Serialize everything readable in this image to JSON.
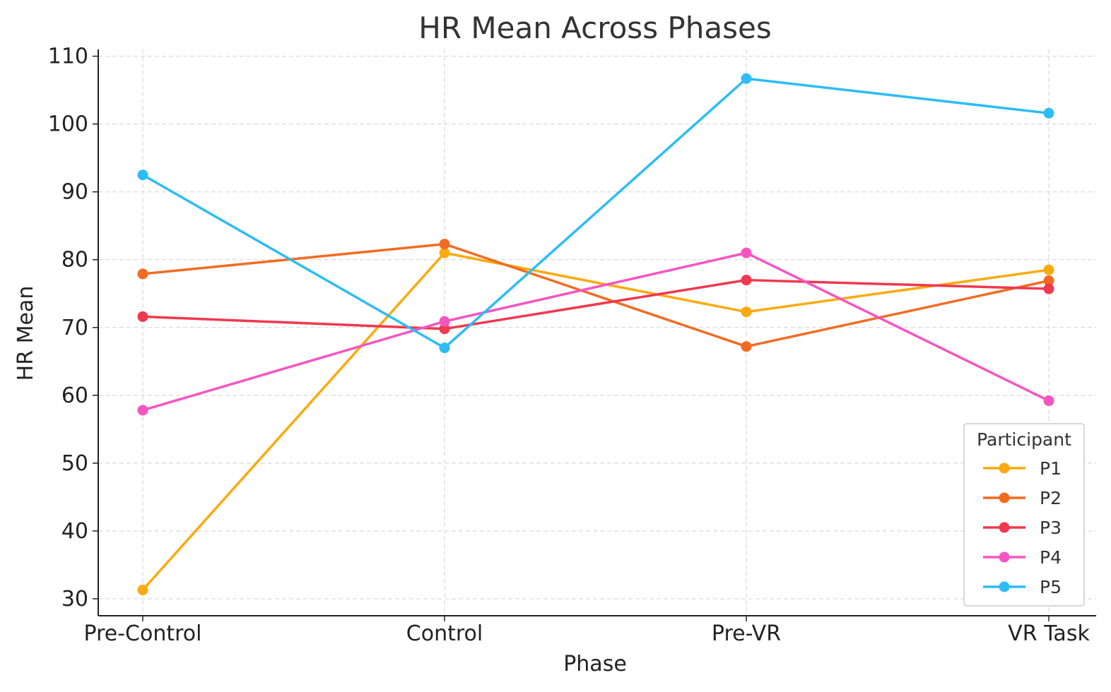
{
  "chart_data": {
    "type": "line",
    "title": "HR Mean Across Phases",
    "xlabel": "Phase",
    "ylabel": "HR Mean",
    "categories": [
      "Pre-Control",
      "Control",
      "Pre-VR",
      "VR Task"
    ],
    "ylim": [
      27.5,
      111
    ],
    "yticks": [
      30,
      40,
      50,
      60,
      70,
      80,
      90,
      100,
      110
    ],
    "grid": true,
    "legend": {
      "title": "Participant",
      "placement": "lower-right"
    },
    "series": [
      {
        "name": "P1",
        "color": "#FAAA0F",
        "values": [
          31.3,
          81.0,
          72.3,
          78.5
        ]
      },
      {
        "name": "P2",
        "color": "#F26B22",
        "values": [
          77.9,
          82.3,
          67.2,
          76.9
        ]
      },
      {
        "name": "P3",
        "color": "#F0384E",
        "values": [
          71.6,
          69.8,
          77.0,
          75.7
        ]
      },
      {
        "name": "P4",
        "color": "#F655C1",
        "values": [
          57.8,
          70.9,
          81.0,
          59.2
        ]
      },
      {
        "name": "P5",
        "color": "#2EBCF5",
        "values": [
          92.5,
          67.0,
          106.7,
          101.6
        ]
      }
    ]
  }
}
